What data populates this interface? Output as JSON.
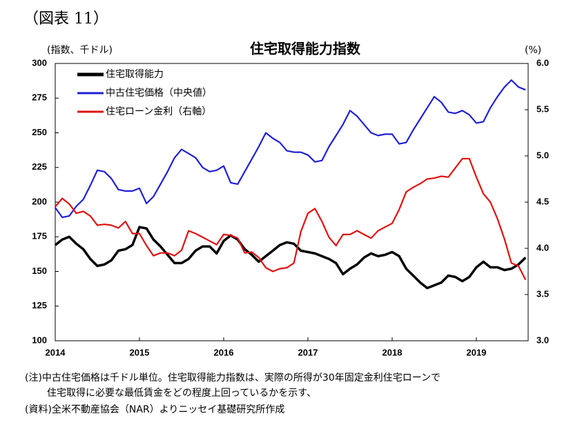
{
  "header": "（図表 11）",
  "chart_data": {
    "type": "line",
    "title": "住宅取得能力指数",
    "ylabel": "(指数、千ドル)",
    "y2label": "(%)",
    "categories": [
      "2014",
      null,
      null,
      null,
      null,
      null,
      null,
      null,
      null,
      null,
      null,
      null,
      "2015",
      null,
      null,
      null,
      null,
      null,
      null,
      null,
      null,
      null,
      null,
      null,
      "2016",
      null,
      null,
      null,
      null,
      null,
      null,
      null,
      null,
      null,
      null,
      null,
      "2017",
      null,
      null,
      null,
      null,
      null,
      null,
      null,
      null,
      null,
      null,
      null,
      "2018",
      null,
      null,
      null,
      null,
      null,
      null,
      null,
      null,
      null,
      null,
      null,
      "2019",
      null,
      null,
      null,
      null,
      null,
      null,
      null
    ],
    "ylim": [
      100,
      300
    ],
    "yticks": [
      100,
      125,
      150,
      175,
      200,
      225,
      250,
      275,
      300
    ],
    "y2lim": [
      3.0,
      6.0
    ],
    "y2ticks": [
      {
        "value": 3.0,
        "label": "3.0"
      },
      3.5,
      {
        "value": 4.0,
        "label": "4.0"
      },
      4.5,
      {
        "value": 5.0,
        "label": "5.0"
      },
      5.5,
      {
        "value": 6.0,
        "label": "6.0"
      }
    ],
    "legend": "upper left",
    "series": [
      {
        "name": "住宅取得能力",
        "color": "#000000",
        "values": [
          169,
          173,
          175,
          170,
          166,
          159,
          154,
          155,
          158,
          165,
          166,
          169,
          182,
          181,
          173,
          168,
          162,
          156,
          156,
          159,
          165,
          168,
          168,
          163,
          172,
          176,
          173,
          166,
          162,
          157,
          161,
          165,
          169,
          171,
          170,
          165,
          164,
          163,
          161,
          159,
          156,
          148,
          152,
          155,
          160,
          163,
          161,
          162,
          164,
          161,
          152,
          147,
          142,
          138,
          140,
          142,
          147,
          146,
          143,
          146,
          153,
          157,
          153,
          153,
          151,
          152,
          155,
          160
        ]
      },
      {
        "name": "中古住宅価格（中央値）",
        "color": "#1f1fd6",
        "values": [
          196,
          189,
          190,
          197,
          202,
          212,
          223,
          222,
          217,
          209,
          208,
          208,
          210,
          199,
          204,
          213,
          222,
          232,
          238,
          235,
          232,
          225,
          222,
          223,
          226,
          214,
          213,
          222,
          231,
          240,
          250,
          246,
          243,
          237,
          236,
          236,
          234,
          229,
          230,
          240,
          248,
          256,
          266,
          262,
          256,
          250,
          248,
          249,
          249,
          242,
          243,
          252,
          260,
          268,
          276,
          272,
          265,
          264,
          266,
          263,
          257,
          258,
          268,
          276,
          283,
          288,
          283,
          281
        ]
      },
      {
        "name": "住宅ローン金利（右軸）",
        "color": "#e01010",
        "axis": "y2",
        "values": [
          4.45,
          4.54,
          4.48,
          4.38,
          4.4,
          4.35,
          4.25,
          4.26,
          4.25,
          4.22,
          4.29,
          4.16,
          4.16,
          4.03,
          3.92,
          3.95,
          3.95,
          3.92,
          3.98,
          4.19,
          4.16,
          4.12,
          4.08,
          4.04,
          4.15,
          4.14,
          4.11,
          3.95,
          3.96,
          3.9,
          3.79,
          3.75,
          3.78,
          3.79,
          3.84,
          4.18,
          4.38,
          4.43,
          4.29,
          4.12,
          4.03,
          4.15,
          4.15,
          4.19,
          4.15,
          4.11,
          4.19,
          4.23,
          4.27,
          4.42,
          4.61,
          4.66,
          4.7,
          4.75,
          4.76,
          4.78,
          4.77,
          4.87,
          4.97,
          4.97,
          4.77,
          4.59,
          4.5,
          4.32,
          4.1,
          3.84,
          3.81,
          3.66
        ]
      }
    ]
  },
  "notes": [
    "(注)中古住宅価格は千ドル単位。住宅取得能力指数は、実際の所得が30年固定金利住宅ローンで",
    "住宅取得に必要な最低賃金をどの程度上回っているかを示す、",
    "(資料)全米不動産協会（NAR）よりニッセイ基礎研究所作成"
  ]
}
